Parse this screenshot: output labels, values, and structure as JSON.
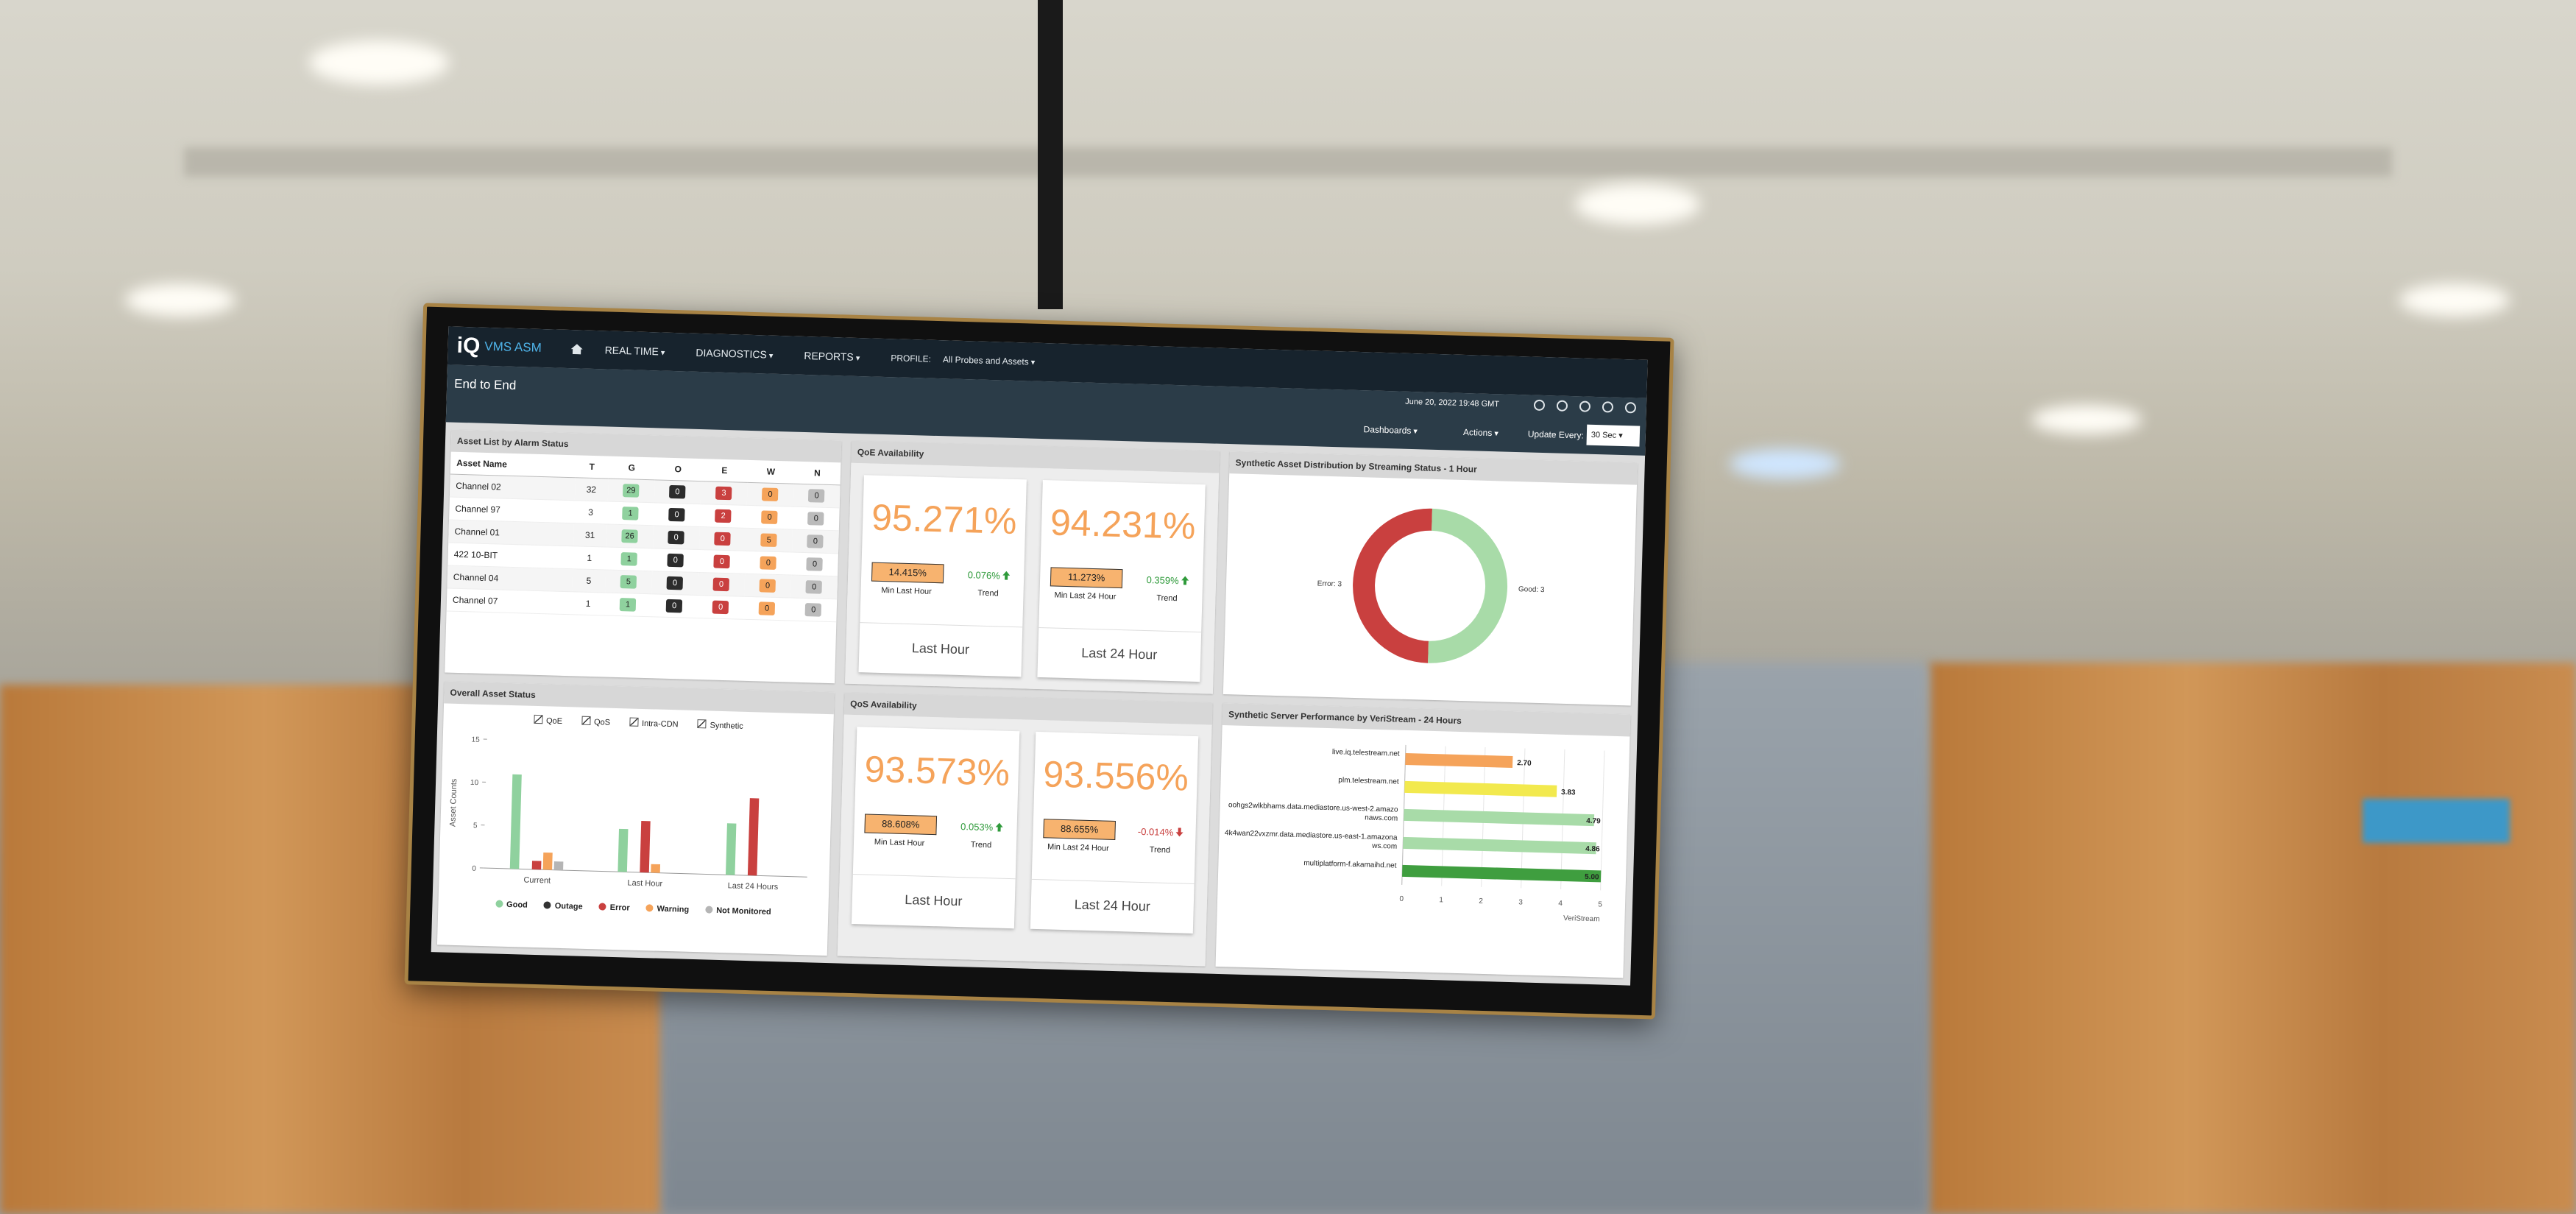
{
  "nav": {
    "logo": "iQ",
    "product": "VMS ASM",
    "menu": [
      "REAL TIME",
      "DIAGNOSTICS",
      "REPORTS"
    ],
    "profile_label": "PROFILE:",
    "profile": "All Probes and Assets"
  },
  "header": {
    "title": "End to End",
    "datetime": "June 20, 2022 19:48 GMT",
    "dashboards": "Dashboards",
    "actions": "Actions",
    "update_label": "Update Every:",
    "update_value": "30 Sec"
  },
  "asset_list": {
    "title": "Asset List by Alarm Status",
    "columns": [
      "Asset Name",
      "T",
      "G",
      "O",
      "E",
      "W",
      "N"
    ],
    "rows": [
      [
        "Channel 02",
        32,
        29,
        0,
        3,
        0,
        0
      ],
      [
        "Channel 97",
        3,
        1,
        0,
        2,
        0,
        0
      ],
      [
        "Channel 01",
        31,
        26,
        0,
        0,
        5,
        0
      ],
      [
        "422 10-BIT",
        1,
        1,
        0,
        0,
        0,
        0
      ],
      [
        "Channel 04",
        5,
        5,
        0,
        0,
        0,
        0
      ],
      [
        "Channel 07",
        1,
        1,
        0,
        0,
        0,
        0
      ]
    ]
  },
  "qoe": {
    "title": "QoE Availability",
    "cards": [
      {
        "value": "95.271%",
        "min": "14.415%",
        "min_label": "Min Last Hour",
        "trend": "0.076%",
        "trend_label": "Trend",
        "trend_up": true,
        "period": "Last Hour"
      },
      {
        "value": "94.231%",
        "min": "11.273%",
        "min_label": "Min Last 24 Hour",
        "trend": "0.359%",
        "trend_label": "Trend",
        "trend_up": true,
        "period": "Last 24 Hour"
      }
    ]
  },
  "qos": {
    "title": "QoS Availability",
    "cards": [
      {
        "value": "93.573%",
        "min": "88.608%",
        "min_label": "Min Last Hour",
        "trend": "0.053%",
        "trend_label": "Trend",
        "trend_up": true,
        "period": "Last Hour"
      },
      {
        "value": "93.556%",
        "min": "88.655%",
        "min_label": "Min Last 24 Hour",
        "trend": "-0.014%",
        "trend_label": "Trend",
        "trend_up": false,
        "period": "Last 24 Hour"
      }
    ]
  },
  "chart_data": [
    {
      "type": "bar",
      "title": "Overall Asset Status",
      "filters": [
        "QoE",
        "QoS",
        "Intra-CDN",
        "Synthetic"
      ],
      "categories": [
        "Current",
        "Last Hour",
        "Last 24 Hours"
      ],
      "series": [
        {
          "name": "Good",
          "color": "#8fd19e",
          "values": [
            11,
            5,
            6
          ]
        },
        {
          "name": "Outage",
          "color": "#333333",
          "values": [
            0,
            0,
            0
          ]
        },
        {
          "name": "Error",
          "color": "#c9403f",
          "values": [
            1,
            6,
            9
          ]
        },
        {
          "name": "Warning",
          "color": "#f5a35a",
          "values": [
            2,
            1,
            0
          ]
        },
        {
          "name": "Not Monitored",
          "color": "#b5b5b5",
          "values": [
            1,
            0,
            0
          ]
        }
      ],
      "ylabel": "Asset Counts",
      "ylim": [
        0,
        15
      ],
      "yticks": [
        0,
        5,
        10,
        15
      ]
    },
    {
      "type": "donut",
      "title": "Synthetic Asset Distribution by Streaming Status - 1 Hour",
      "categories": [
        "Error",
        "Good"
      ],
      "values": [
        3,
        3
      ],
      "value_labels": [
        "Error: 3",
        "Good: 3"
      ],
      "colors": [
        "#c9403f",
        "#a8dba8"
      ]
    },
    {
      "type": "hbar",
      "title": "Synthetic Server Performance by VeriStream - 24 Hours",
      "categories": [
        "live.iq.telestream.net",
        "plm.telestream.net",
        "oohgs2wlkbhams.data.mediastore.us-west-2.amazonaws.com",
        "4k4wan22vxzmr.data.mediastore.us-east-1.amazonaws.com",
        "multiplatform-f.akamaihd.net"
      ],
      "values": [
        2.7,
        3.83,
        4.79,
        4.86,
        5.0
      ],
      "value_labels": [
        "2.70",
        "3.83",
        "4.79",
        "4.86",
        "5.00"
      ],
      "colors": [
        "#f5a35a",
        "#f2e94e",
        "#a8dba8",
        "#a8dba8",
        "#3f9e3f"
      ],
      "xlabel": "VeriStream",
      "xlim": [
        0,
        5
      ],
      "xticks": [
        0,
        1,
        2,
        3,
        4,
        5
      ],
      "grid": true
    }
  ]
}
